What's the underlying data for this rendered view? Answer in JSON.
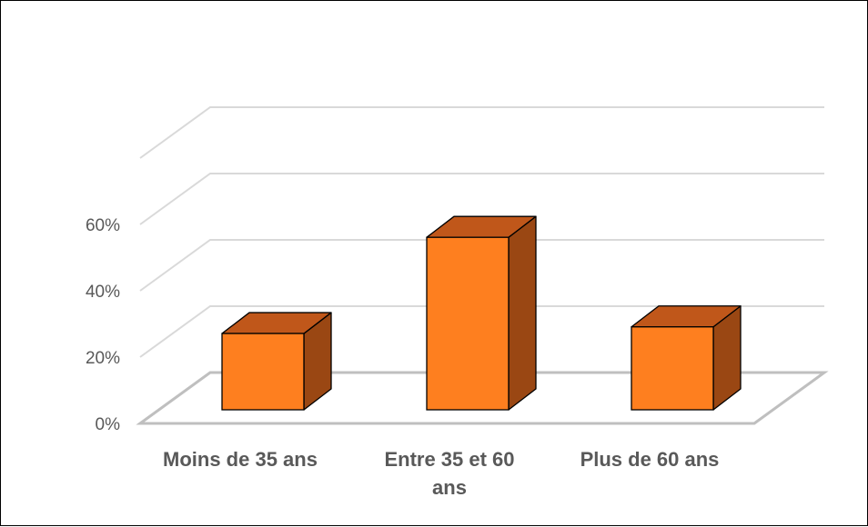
{
  "chart_data": {
    "type": "bar",
    "categories": [
      "Moins de 35 ans",
      "Entre 35 et 60 ans",
      "Plus de 60 ans"
    ],
    "category_lines": [
      [
        "Moins de 35 ans"
      ],
      [
        "Entre 35 et 60",
        "ans"
      ],
      [
        "Plus de 60 ans"
      ]
    ],
    "values": [
      23,
      52,
      25
    ],
    "y_ticks": [
      "0%",
      "20%",
      "40%",
      "60%"
    ],
    "ylim": [
      0,
      80
    ],
    "unit": "%",
    "title": "",
    "xlabel": "",
    "ylabel": "",
    "grid": true,
    "legend": "none",
    "style": "3d-column",
    "colors": {
      "front": "#fe7f1f",
      "top": "#c0571a",
      "side": "#9a4713",
      "grid": "#d9d9d9",
      "floor": "#bfbfbf",
      "text": "#595959"
    }
  }
}
